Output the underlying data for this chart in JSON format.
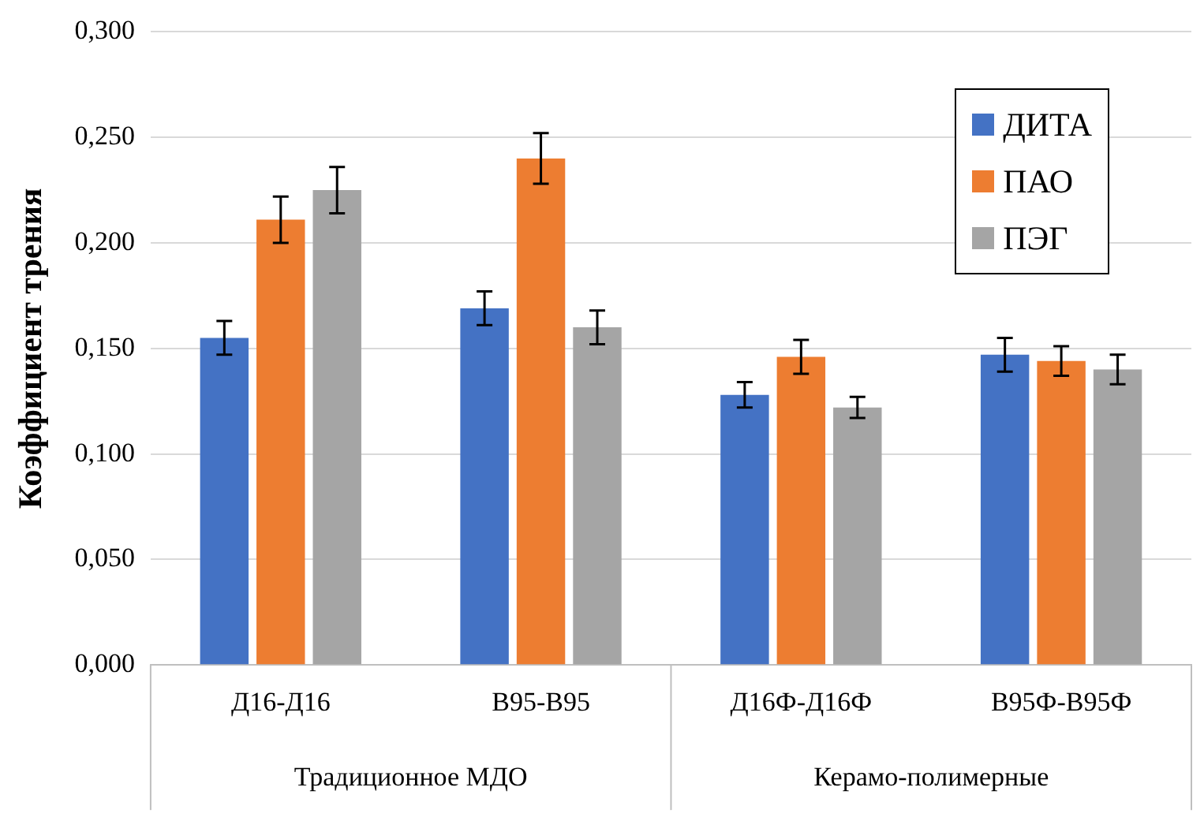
{
  "chart_data": {
    "type": "bar",
    "ylabel": "Коэффициент трения",
    "categories": [
      "Д16-Д16",
      "В95-В95",
      "Д16Ф-Д16Ф",
      "В95Ф-В95Ф"
    ],
    "series": [
      {
        "name": "ДИТА",
        "color": "#4472c4",
        "values": [
          0.155,
          0.169,
          0.128,
          0.147
        ],
        "errors": [
          0.008,
          0.008,
          0.006,
          0.008
        ]
      },
      {
        "name": "ПАО",
        "color": "#ed7d31",
        "values": [
          0.211,
          0.24,
          0.146,
          0.144
        ],
        "errors": [
          0.011,
          0.012,
          0.008,
          0.007
        ]
      },
      {
        "name": "ПЭГ",
        "color": "#a5a5a5",
        "values": [
          0.225,
          0.16,
          0.122,
          0.14
        ],
        "errors": [
          0.011,
          0.008,
          0.005,
          0.007
        ]
      }
    ],
    "annotations": [
      "Традиционное МДО",
      "Керамо-полимерные"
    ],
    "ylim": [
      0,
      0.3
    ],
    "yticks": [
      {
        "value": 0,
        "label": "0,000"
      },
      {
        "value": 0.05,
        "label": "0,050"
      },
      {
        "value": 0.1,
        "label": "0,100"
      },
      {
        "value": 0.15,
        "label": "0,150"
      },
      {
        "value": 0.2,
        "label": "0,200"
      },
      {
        "value": 0.25,
        "label": "0,250"
      },
      {
        "value": 0.3,
        "label": "0,300"
      }
    ],
    "grid": "y",
    "legend": "top right"
  }
}
